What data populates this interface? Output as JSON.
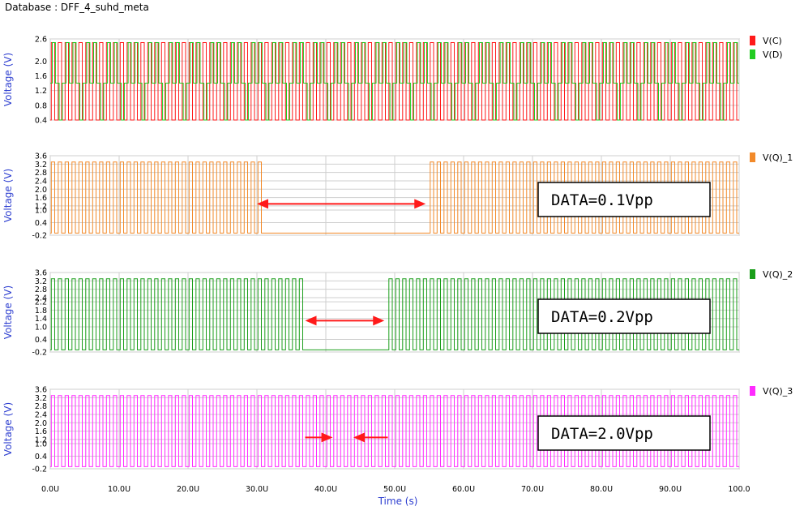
{
  "database_label": "Database : DFF_4_suhd_meta",
  "chart_data": {
    "type": "line",
    "xlabel": "Time (s)",
    "xlim": [
      0,
      100
    ],
    "x_ticks": [
      "0.0U",
      "10.0U",
      "20.0U",
      "30.0U",
      "40.0U",
      "50.0U",
      "60.0U",
      "70.0U",
      "80.0U",
      "90.0U",
      "100.0"
    ],
    "panels": [
      {
        "ylabel": "Voltage (V)",
        "ylim": [
          0.4,
          2.6
        ],
        "y_ticks": [
          "2.6",
          "2.0",
          "1.6",
          "1.2",
          "0.8",
          "0.4"
        ],
        "y_tick_values": [
          2.6,
          2.0,
          1.6,
          1.2,
          0.8,
          0.4
        ],
        "series": [
          {
            "name": "V(C)",
            "color": "#ff1a1a",
            "kind": "square",
            "low": 0.4,
            "high": 2.5,
            "period": 1.0
          },
          {
            "name": "V(D)",
            "color": "#22cc22",
            "kind": "square_dc",
            "low": 0.4,
            "high": 2.5,
            "mid": 1.4,
            "period": 1.0,
            "offset": 0.3
          }
        ]
      },
      {
        "ylabel": "Voltage (V)",
        "ylim": [
          -0.2,
          3.6
        ],
        "y_ticks": [
          "3.6",
          "3.2",
          "2.8",
          "2.4",
          "2.0",
          "1.6",
          "1.2",
          "1.0",
          "0.4",
          "-0.2"
        ],
        "y_tick_values": [
          3.6,
          3.2,
          2.8,
          2.4,
          2.0,
          1.6,
          1.2,
          1.0,
          0.4,
          -0.2
        ],
        "series": [
          {
            "name": "V(Q)_1",
            "color": "#f28a2a",
            "kind": "square_gap",
            "low": -0.1,
            "high": 3.3,
            "period": 1.0,
            "gap": [
              30.5,
              54.5
            ]
          }
        ],
        "annotation": "DATA=0.1Vpp",
        "arrow": {
          "type": "double",
          "x": [
            30.0,
            54.5
          ],
          "y": 1.3
        }
      },
      {
        "ylabel": "Voltage (V)",
        "ylim": [
          -0.2,
          3.6
        ],
        "y_ticks": [
          "3.6",
          "3.2",
          "2.8",
          "2.4",
          "2.2",
          "1.8",
          "1.4",
          "1.0",
          "0.4",
          "-0.2"
        ],
        "y_tick_values": [
          3.6,
          3.2,
          2.8,
          2.4,
          2.2,
          1.8,
          1.4,
          1.0,
          0.4,
          -0.2
        ],
        "series": [
          {
            "name": "V(Q)_2",
            "color": "#1a9e1a",
            "kind": "square_gap",
            "low": -0.1,
            "high": 3.3,
            "period": 1.0,
            "gap": [
              36.5,
              48.5
            ]
          }
        ],
        "annotation": "DATA=0.2Vpp",
        "arrow": {
          "type": "double",
          "x": [
            37.0,
            48.5
          ],
          "y": 1.3
        }
      },
      {
        "ylabel": "Voltage (V)",
        "ylim": [
          -0.2,
          3.6
        ],
        "y_ticks": [
          "3.6",
          "3.2",
          "2.8",
          "2.4",
          "2.0",
          "1.6",
          "1.2",
          "1.0",
          "0.4",
          "-0.2"
        ],
        "y_tick_values": [
          3.6,
          3.2,
          2.8,
          2.4,
          2.0,
          1.6,
          1.2,
          1.0,
          0.4,
          -0.2
        ],
        "series": [
          {
            "name": "V(Q)_3",
            "color": "#ff2bff",
            "kind": "square",
            "low": -0.1,
            "high": 3.3,
            "period": 1.0
          }
        ],
        "annotation": "DATA=2.0Vpp",
        "arrow": {
          "type": "converging",
          "x": [
            37.0,
            41.0,
            44.0,
            49.0
          ],
          "y": 1.3
        }
      }
    ]
  }
}
